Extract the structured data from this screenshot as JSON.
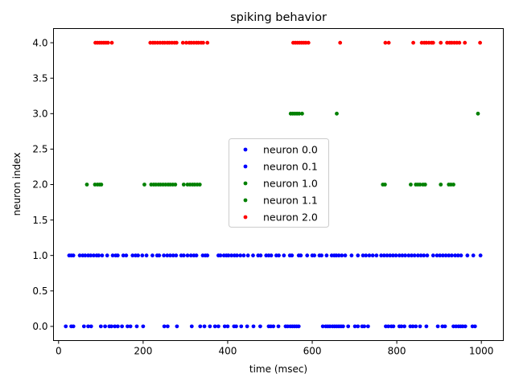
{
  "chart_data": {
    "type": "scatter",
    "title": "spiking behavior",
    "xlabel": "time (msec)",
    "ylabel": "neuron index",
    "xlim": [
      -12,
      1052
    ],
    "ylim": [
      -0.2,
      4.2
    ],
    "x_ticks": [
      0,
      200,
      400,
      600,
      800,
      1000
    ],
    "x_tick_labels": [
      "0",
      "200",
      "400",
      "600",
      "800",
      "1000"
    ],
    "y_ticks": [
      0.0,
      0.5,
      1.0,
      1.5,
      2.0,
      2.5,
      3.0,
      3.5,
      4.0
    ],
    "y_tick_labels": [
      "0.0",
      "0.5",
      "1.0",
      "1.5",
      "2.0",
      "2.5",
      "3.0",
      "3.5",
      "4.0"
    ],
    "grid": false,
    "legend_position": "center",
    "series": [
      {
        "name": "neuron 0.0",
        "color": "#0000ff",
        "y": 0,
        "x": [
          17,
          30,
          35,
          60,
          70,
          77,
          100,
          110,
          120,
          125,
          133,
          140,
          150,
          163,
          170,
          185,
          200,
          250,
          258,
          280,
          315,
          335,
          345,
          358,
          370,
          378,
          393,
          400,
          415,
          420,
          432,
          446,
          461,
          477,
          497,
          502,
          508,
          520,
          537,
          542,
          548,
          553,
          558,
          563,
          568,
          625,
          632,
          637,
          642,
          648,
          653,
          658,
          663,
          668,
          673,
          685,
          701,
          708,
          718,
          723,
          732,
          774,
          780,
          787,
          792,
          806,
          811,
          818,
          832,
          838,
          845,
          855,
          870,
          897,
          908,
          914,
          934,
          940,
          946,
          951,
          956,
          962,
          979,
          985
        ]
      },
      {
        "name": "neuron 0.1",
        "color": "#0000ff",
        "y": 1,
        "x": [
          25,
          30,
          35,
          50,
          57,
          63,
          70,
          76,
          83,
          90,
          95,
          103,
          115,
          128,
          135,
          140,
          153,
          160,
          175,
          182,
          188,
          198,
          208,
          222,
          233,
          238,
          249,
          257,
          264,
          271,
          278,
          290,
          296,
          305,
          313,
          320,
          326,
          341,
          347,
          352,
          378,
          383,
          391,
          397,
          402,
          409,
          416,
          422,
          430,
          438,
          448,
          460,
          472,
          478,
          491,
          497,
          503,
          515,
          521,
          533,
          547,
          552,
          568,
          573,
          588,
          600,
          605,
          617,
          622,
          634,
          646,
          652,
          657,
          663,
          670,
          678,
          693,
          708,
          720,
          727,
          735,
          743,
          752,
          763,
          770,
          777,
          784,
          791,
          798,
          806,
          813,
          820,
          828,
          835,
          842,
          850,
          857,
          864,
          872,
          886,
          895,
          902,
          909,
          916,
          923,
          930,
          938,
          945,
          952,
          967,
          981,
          998
        ]
      },
      {
        "name": "neuron 1.0",
        "color": "#008000",
        "y": 2,
        "x": [
          67,
          86,
          92,
          97,
          101,
          203,
          219,
          225,
          230,
          236,
          241,
          247,
          253,
          259,
          264,
          270,
          276,
          296,
          305,
          311,
          317,
          322,
          328,
          334,
          767,
          772,
          833,
          845,
          850,
          855,
          862,
          867,
          904,
          923,
          928,
          934
        ]
      },
      {
        "name": "neuron 1.1",
        "color": "#008000",
        "y": 3,
        "x": [
          549,
          554,
          559,
          564,
          569,
          576,
          658,
          992
        ]
      },
      {
        "name": "neuron 2.0",
        "color": "#ff0000",
        "y": 4,
        "x": [
          87,
          92,
          97,
          102,
          107,
          112,
          117,
          126,
          217,
          223,
          228,
          234,
          240,
          246,
          251,
          257,
          262,
          268,
          274,
          279,
          294,
          302,
          309,
          314,
          320,
          326,
          331,
          337,
          342,
          352,
          555,
          560,
          565,
          570,
          575,
          580,
          585,
          591,
          666,
          773,
          781,
          839,
          859,
          865,
          870,
          876,
          882,
          886,
          904,
          919,
          925,
          930,
          936,
          942,
          948,
          961,
          997
        ]
      }
    ]
  }
}
